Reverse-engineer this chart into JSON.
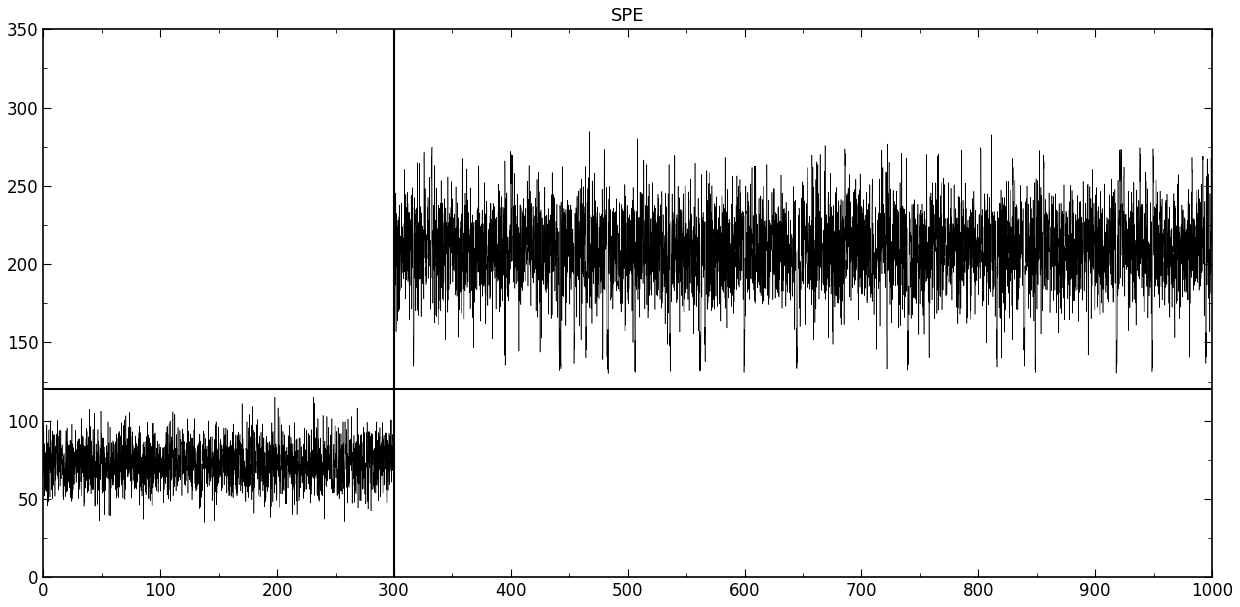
{
  "title": "SPE",
  "xlim": [
    0,
    1000
  ],
  "ylim": [
    0,
    350
  ],
  "xticks": [
    0,
    100,
    200,
    300,
    400,
    500,
    600,
    700,
    800,
    900,
    1000
  ],
  "yticks": [
    0,
    50,
    100,
    150,
    200,
    250,
    300,
    350
  ],
  "threshold_y": 120,
  "transition_x": 300,
  "segment1_mean": 73,
  "segment1_std": 12,
  "segment1_start": 0,
  "segment1_end": 300,
  "segment2_mean": 210,
  "segment2_std": 20,
  "segment2_start": 300,
  "segment2_end": 1000,
  "samples_per_unit": 8,
  "line_color": "#000000",
  "threshold_color": "#000000",
  "background_color": "#ffffff",
  "title_fontsize": 13,
  "random_seed": 7
}
